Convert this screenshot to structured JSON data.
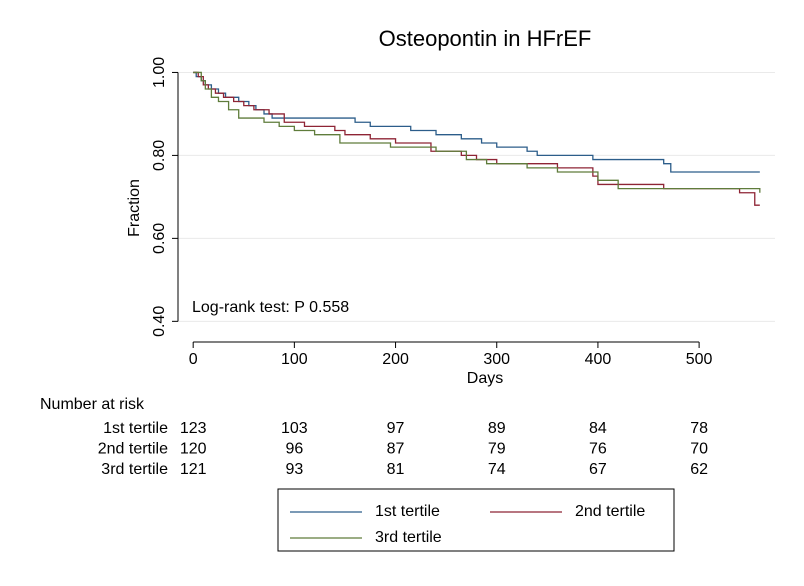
{
  "chart_data": {
    "type": "step",
    "title": "Osteopontin in HFrEF",
    "xlabel": "Days",
    "ylabel": "Fraction",
    "annotation": "Log-rank test: P 0.558",
    "xlim": [
      -15,
      575
    ],
    "xticks": [
      0,
      100,
      200,
      300,
      400,
      500
    ],
    "ylim": [
      0.355,
      1.03
    ],
    "yticks": [
      {
        "value": 0.4,
        "label": "0.40"
      },
      {
        "value": 0.6,
        "label": "0.60"
      },
      {
        "value": 0.8,
        "label": "0.80"
      },
      {
        "value": 1,
        "label": "1.00"
      }
    ],
    "grid": true,
    "series": [
      {
        "name": "1st tertile",
        "color": "#2c5d8a",
        "x": [
          0,
          3,
          8,
          12,
          18,
          25,
          32,
          45,
          55,
          62,
          70,
          78,
          95,
          160,
          175,
          215,
          240,
          265,
          285,
          300,
          330,
          340,
          395,
          465,
          472,
          560
        ],
        "y": [
          1,
          0.99,
          0.98,
          0.97,
          0.96,
          0.95,
          0.94,
          0.93,
          0.92,
          0.91,
          0.9,
          0.89,
          0.89,
          0.88,
          0.87,
          0.86,
          0.85,
          0.84,
          0.83,
          0.82,
          0.81,
          0.8,
          0.79,
          0.78,
          0.76,
          0.76
        ]
      },
      {
        "name": "2nd tertile",
        "color": "#8e2435",
        "x": [
          0,
          5,
          10,
          15,
          22,
          30,
          40,
          50,
          60,
          75,
          90,
          110,
          140,
          150,
          175,
          200,
          235,
          265,
          280,
          300,
          360,
          395,
          400,
          465,
          540,
          555,
          560
        ],
        "y": [
          1,
          0.99,
          0.97,
          0.96,
          0.95,
          0.94,
          0.93,
          0.92,
          0.91,
          0.9,
          0.88,
          0.87,
          0.86,
          0.85,
          0.84,
          0.83,
          0.81,
          0.8,
          0.79,
          0.78,
          0.77,
          0.75,
          0.73,
          0.72,
          0.71,
          0.68,
          0.68
        ]
      },
      {
        "name": "3rd tertile",
        "color": "#5f7c3b",
        "x": [
          0,
          8,
          12,
          18,
          25,
          35,
          45,
          70,
          85,
          100,
          120,
          145,
          195,
          240,
          270,
          290,
          330,
          360,
          400,
          420,
          560
        ],
        "y": [
          1,
          0.98,
          0.96,
          0.94,
          0.93,
          0.91,
          0.89,
          0.88,
          0.87,
          0.86,
          0.85,
          0.83,
          0.82,
          0.81,
          0.79,
          0.78,
          0.77,
          0.76,
          0.74,
          0.72,
          0.71
        ]
      }
    ],
    "risk_table": {
      "title": "Number at risk",
      "rows": [
        {
          "label": "1st tertile",
          "values": [
            123,
            103,
            97,
            89,
            84,
            78
          ]
        },
        {
          "label": "2nd tertile",
          "values": [
            120,
            96,
            87,
            79,
            76,
            70
          ]
        },
        {
          "label": "3rd tertile",
          "values": [
            121,
            93,
            81,
            74,
            67,
            62
          ]
        }
      ]
    }
  }
}
